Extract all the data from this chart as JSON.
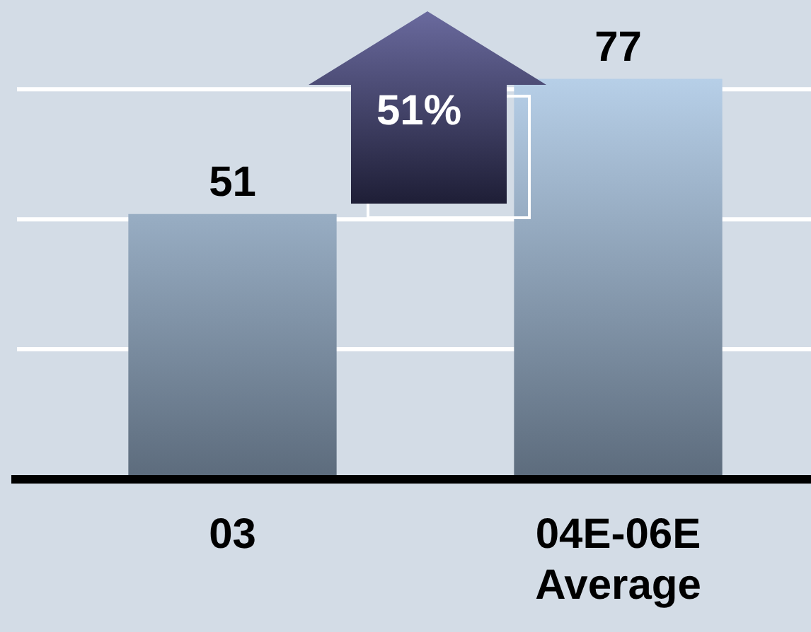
{
  "chart_data": {
    "type": "bar",
    "categories": [
      "03",
      "04E-06E Average"
    ],
    "values": [
      51,
      77
    ],
    "color": "#5c6b7c",
    "data_labels": true,
    "yticks": [
      {
        "value": 0,
        "label": null
      },
      {
        "value": 25,
        "label": null
      },
      {
        "value": 50,
        "label": null
      },
      {
        "value": 75,
        "label": null
      }
    ],
    "grid": "y",
    "tick_labels": "x",
    "legend": false,
    "annotations": [
      "51%"
    ]
  }
}
